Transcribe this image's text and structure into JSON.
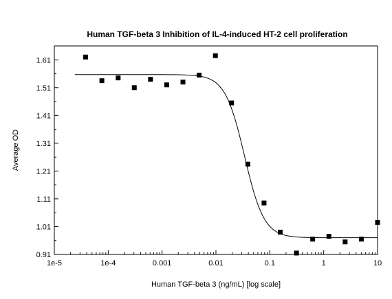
{
  "chart_data": {
    "type": "scatter",
    "title": "Human TGF-beta 3 Inhibition of IL-4-induced HT-2 cell proliferation",
    "xlabel": "Human TGF-beta 3 (ng/mL) [log scale]",
    "ylabel": "Average OD",
    "x_scale": "log",
    "xlim": [
      1e-05,
      10
    ],
    "ylim": [
      0.91,
      1.66
    ],
    "x_ticks": [
      "1e-5",
      "1e-4",
      "0.001",
      "0.01",
      "0.1",
      "1",
      "10"
    ],
    "x_tick_values": [
      1e-05,
      0.0001,
      0.001,
      0.01,
      0.1,
      1,
      10
    ],
    "y_ticks": [
      "0.91",
      "1.01",
      "1.11",
      "1.21",
      "1.31",
      "1.41",
      "1.51",
      "1.61"
    ],
    "y_tick_values": [
      0.91,
      1.01,
      1.11,
      1.21,
      1.31,
      1.41,
      1.51,
      1.61
    ],
    "grid": false,
    "series": [
      {
        "kind": "points",
        "marker": "square",
        "color": "#000000",
        "x": [
          3.81e-05,
          7.63e-05,
          0.000153,
          0.000305,
          0.00061,
          0.00122,
          0.00244,
          0.00488,
          0.00977,
          0.0195,
          0.0391,
          0.0781,
          0.156,
          0.3125,
          0.625,
          1.25,
          2.5,
          5,
          10
        ],
        "y": [
          1.62,
          1.535,
          1.545,
          1.51,
          1.54,
          1.52,
          1.53,
          1.555,
          1.625,
          1.455,
          1.235,
          1.095,
          0.99,
          0.915,
          0.965,
          0.975,
          0.955,
          0.965,
          1.025
        ]
      },
      {
        "kind": "fit-curve",
        "model": "4PL",
        "color": "#000000",
        "top": 1.557,
        "bottom": 0.97,
        "ec50": 0.034,
        "hill": 2.4
      }
    ]
  }
}
